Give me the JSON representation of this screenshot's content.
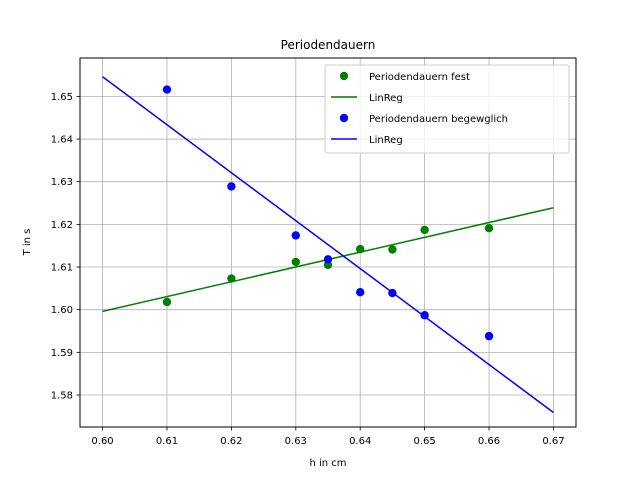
{
  "chart_data": {
    "type": "scatter",
    "title": "Periodendauern",
    "xlabel": "h in cm",
    "ylabel": "T in s",
    "xlim": [
      0.5965,
      0.6735
    ],
    "ylim": [
      1.5725,
      1.659
    ],
    "xticks": [
      0.6,
      0.61,
      0.62,
      0.63,
      0.64,
      0.65,
      0.66,
      0.67
    ],
    "xtick_labels": [
      "0.60",
      "0.61",
      "0.62",
      "0.63",
      "0.64",
      "0.65",
      "0.66",
      "0.67"
    ],
    "yticks": [
      1.58,
      1.59,
      1.6,
      1.61,
      1.62,
      1.63,
      1.64,
      1.65
    ],
    "ytick_labels": [
      "1.58",
      "1.59",
      "1.60",
      "1.61",
      "1.62",
      "1.63",
      "1.64",
      "1.65"
    ],
    "grid": true,
    "legend_position": "top-right",
    "series": [
      {
        "name": "Periodendauern fest",
        "kind": "scatter",
        "color": "#008000",
        "points": [
          [
            0.61,
            1.6018
          ],
          [
            0.62,
            1.6073
          ],
          [
            0.63,
            1.6112
          ],
          [
            0.635,
            1.6105
          ],
          [
            0.64,
            1.6142
          ],
          [
            0.645,
            1.6141
          ],
          [
            0.65,
            1.6187
          ],
          [
            0.66,
            1.6191
          ]
        ]
      },
      {
        "name": "LinReg",
        "kind": "line",
        "color": "#008000",
        "points": [
          [
            0.6,
            1.5996
          ],
          [
            0.67,
            1.6239
          ]
        ]
      },
      {
        "name": "Periodendauern begewglich",
        "kind": "scatter",
        "color": "#0000ff",
        "points": [
          [
            0.61,
            1.6516
          ],
          [
            0.62,
            1.6289
          ],
          [
            0.63,
            1.6174
          ],
          [
            0.635,
            1.6118
          ],
          [
            0.64,
            1.6041
          ],
          [
            0.645,
            1.6039
          ],
          [
            0.65,
            1.5987
          ],
          [
            0.66,
            1.5938
          ]
        ]
      },
      {
        "name": "LinReg",
        "kind": "line",
        "color": "#0000ff",
        "points": [
          [
            0.6,
            1.6546
          ],
          [
            0.67,
            1.5759
          ]
        ]
      }
    ]
  }
}
